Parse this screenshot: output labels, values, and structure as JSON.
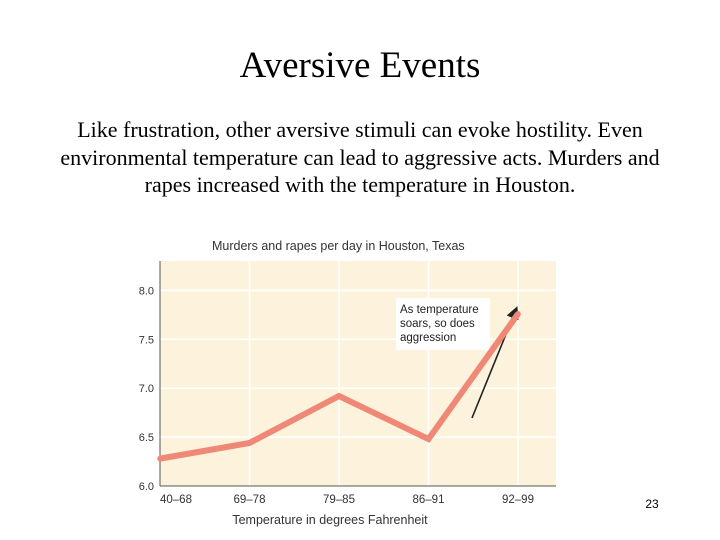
{
  "slide": {
    "title": "Aversive Events",
    "body": "Like frustration, other aversive stimuli can evoke hostility. Even environmental temperature can lead to aggressive acts. Murders and rapes increased with the temperature in Houston.",
    "page_number": "23"
  },
  "colors": {
    "plot_background": "#fdf3dc",
    "grid": "#ffffff",
    "line": "#ef8877",
    "axis": "#555555",
    "text": "#333333"
  },
  "chart_data": {
    "type": "line",
    "title": "Murders and rapes per day in Houston, Texas",
    "xlabel": "Temperature in degrees Fahrenheit",
    "ylabel": "",
    "categories": [
      "40–68",
      "69–78",
      "79–85",
      "86–91",
      "92–99"
    ],
    "series": [
      {
        "name": "Murders and rapes per day",
        "values": [
          6.28,
          6.44,
          6.92,
          6.48,
          7.76
        ]
      }
    ],
    "ylim": [
      6.0,
      8.3
    ],
    "yticks": [
      6.0,
      6.5,
      7.0,
      7.5,
      8.0
    ],
    "ytick_labels": [
      "6.0",
      "6.5",
      "7.0",
      "7.5",
      "8.0"
    ],
    "grid": true,
    "annotation": {
      "lines": [
        "As temperature",
        "soars, so does",
        "aggression"
      ]
    }
  }
}
